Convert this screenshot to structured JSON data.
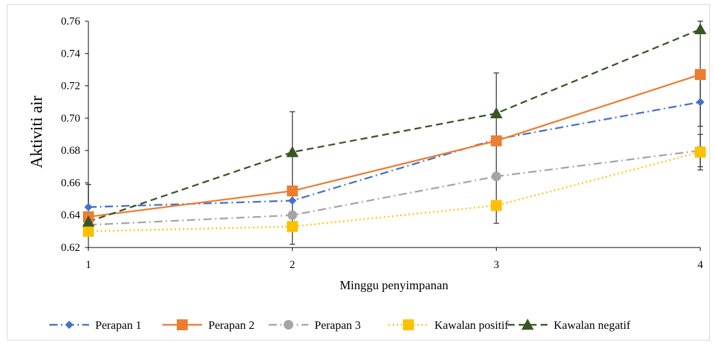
{
  "chart_data": {
    "type": "line",
    "x": [
      1,
      2,
      3,
      4
    ],
    "xlabel": "Minggu penyimpanan",
    "ylabel": "Aktiviti air",
    "ylim": [
      0.62,
      0.76
    ],
    "yticks": [
      0.62,
      0.64,
      0.66,
      0.68,
      0.7,
      0.72,
      0.74,
      0.76
    ],
    "ytick_labels": [
      "0.62",
      "0.64",
      "0.66",
      "0.68",
      "0.70",
      "0.72",
      "0.74",
      "0.76"
    ],
    "xtick_labels": [
      "1",
      "2",
      "3",
      "4"
    ],
    "grid": false,
    "legend_position": "bottom",
    "series": [
      {
        "name": "Perapan 1",
        "values": [
          0.645,
          0.649,
          0.687,
          0.71
        ],
        "color": "#4472C4",
        "marker": "diamond",
        "dash": "dash-dot"
      },
      {
        "name": "Perapan 2",
        "values": [
          0.639,
          0.655,
          0.686,
          0.727
        ],
        "color": "#ED7D31",
        "marker": "square",
        "dash": "solid"
      },
      {
        "name": "Perapan 3",
        "values": [
          0.634,
          0.64,
          0.664,
          0.68
        ],
        "color": "#A5A5A5",
        "marker": "circle",
        "dash": "dash-dot"
      },
      {
        "name": "Kawalan positif",
        "values": [
          0.63,
          0.633,
          0.646,
          0.679
        ],
        "color": "#FFC000",
        "marker": "square",
        "dash": "dot"
      },
      {
        "name": "Kawalan negatif",
        "values": [
          0.636,
          0.679,
          0.703,
          0.755
        ],
        "color": "#375623",
        "marker": "triangle",
        "dash": "dash"
      }
    ],
    "error_bars": [
      {
        "x": 1,
        "low": 0.632,
        "high": 0.659
      },
      {
        "x": 2,
        "low": 0.622,
        "high": 0.704
      },
      {
        "x": 3,
        "low": 0.635,
        "high": 0.728
      },
      {
        "x": 4,
        "low": 0.668,
        "high": 0.76
      },
      {
        "x": 4,
        "low": 0.695,
        "high": 0.725
      },
      {
        "x": 4,
        "low": 0.67,
        "high": 0.69
      }
    ]
  }
}
